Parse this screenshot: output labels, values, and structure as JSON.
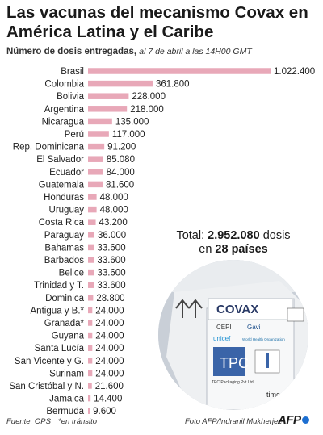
{
  "title": "Las vacunas del mecanismo Covax en América Latina y el Caribe",
  "subtitle": {
    "lead": "Número de dosis entregadas,",
    "note": "al 7 de abril a las 14H00 GMT"
  },
  "total": {
    "prefix": "Total:",
    "value": "2.952.080",
    "unit": "dosis",
    "connector": "en",
    "countries": "28 países"
  },
  "photo": {
    "brand": "COVAX",
    "labels": [
      "CEPI",
      "Gavi",
      "unicef",
      "World Health Organization"
    ],
    "box_text": [
      "TPC Packaging Pvt Ltd",
      "time and",
      "temper"
    ]
  },
  "footer": {
    "source": "Fuente: OPS",
    "transit_note": "*en tránsito",
    "credit": "Foto AFP/Indranil Mukherjee",
    "logo": "AFP"
  },
  "colors": {
    "bar": "#e8a8b8",
    "text": "#222222",
    "logo_dot": "#1d6fd1"
  },
  "chart_data": {
    "type": "bar",
    "orientation": "horizontal",
    "categories": [
      "Brasil",
      "Colombia",
      "Bolivia",
      "Argentina",
      "Nicaragua",
      "Perú",
      "Rep. Dominicana",
      "El Salvador",
      "Ecuador",
      "Guatemala",
      "Honduras",
      "Uruguay",
      "Costa Rica",
      "Paraguay",
      "Bahamas",
      "Barbados",
      "Belice",
      "Trinidad y T.",
      "Dominica",
      "Antigua y B.*",
      "Granada*",
      "Guyana",
      "Santa Lucía",
      "San Vicente y G.",
      "Surinam",
      "San Cristóbal y N.",
      "Jamaica",
      "Bermuda"
    ],
    "values": [
      1022400,
      361800,
      228000,
      218000,
      135000,
      117000,
      91200,
      85080,
      84000,
      81600,
      48000,
      48000,
      43200,
      36000,
      33600,
      33600,
      33600,
      33600,
      28800,
      24000,
      24000,
      24000,
      24000,
      24000,
      24000,
      21600,
      14400,
      9600
    ],
    "value_labels": [
      "1.022.400",
      "361.800",
      "228.000",
      "218.000",
      "135.000",
      "117.000",
      "91.200",
      "85.080",
      "84.000",
      "81.600",
      "48.000",
      "48.000",
      "43.200",
      "36.000",
      "33.600",
      "33.600",
      "33.600",
      "33.600",
      "28.800",
      "24.000",
      "24.000",
      "24.000",
      "24.000",
      "24.000",
      "24.000",
      "21.600",
      "14.400",
      "9.600"
    ],
    "xlim": [
      0,
      1022400
    ],
    "grid": false,
    "legend": "none"
  }
}
